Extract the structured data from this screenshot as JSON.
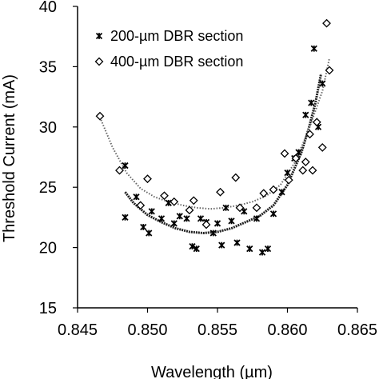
{
  "chart_data": {
    "type": "scatter",
    "xlabel": "Wavelength (µm)",
    "ylabel": "Threshold Current (mA)",
    "xlim": [
      0.845,
      0.865
    ],
    "ylim": [
      15,
      40
    ],
    "x_ticks": [
      "0.845",
      "0.850",
      "0.855",
      "0.860",
      "0.865"
    ],
    "y_ticks": [
      "15",
      "20",
      "25",
      "30",
      "35",
      "40"
    ],
    "grid": false,
    "legend_position": "top-left",
    "series": [
      {
        "name": "200-µm DBR section",
        "marker": "asterisk",
        "points": [
          [
            0.8484,
            26.8
          ],
          [
            0.8484,
            22.5
          ],
          [
            0.8492,
            24.2
          ],
          [
            0.8497,
            21.7
          ],
          [
            0.8501,
            21.2
          ],
          [
            0.8503,
            23.0
          ],
          [
            0.851,
            22.4
          ],
          [
            0.8515,
            23.7
          ],
          [
            0.8519,
            22.0
          ],
          [
            0.8523,
            22.6
          ],
          [
            0.8528,
            22.4
          ],
          [
            0.8532,
            20.1
          ],
          [
            0.8535,
            19.9
          ],
          [
            0.8538,
            22.4
          ],
          [
            0.8542,
            22.1
          ],
          [
            0.8547,
            21.2
          ],
          [
            0.855,
            22.0
          ],
          [
            0.8553,
            20.2
          ],
          [
            0.8556,
            23.3
          ],
          [
            0.856,
            22.2
          ],
          [
            0.8564,
            20.4
          ],
          [
            0.8569,
            23.0
          ],
          [
            0.8573,
            19.9
          ],
          [
            0.8578,
            22.4
          ],
          [
            0.8582,
            19.6
          ],
          [
            0.8586,
            19.9
          ],
          [
            0.859,
            22.8
          ],
          [
            0.8596,
            24.6
          ],
          [
            0.86,
            26.2
          ],
          [
            0.8605,
            27.4
          ],
          [
            0.8608,
            27.9
          ],
          [
            0.8613,
            31.0
          ],
          [
            0.8617,
            32.0
          ],
          [
            0.8619,
            36.5
          ],
          [
            0.8622,
            30.0
          ],
          [
            0.8625,
            33.6
          ]
        ],
        "fit": [
          [
            0.8484,
            24.6
          ],
          [
            0.849,
            23.7
          ],
          [
            0.85,
            22.7
          ],
          [
            0.851,
            22.1
          ],
          [
            0.852,
            21.6
          ],
          [
            0.853,
            21.3
          ],
          [
            0.854,
            21.2
          ],
          [
            0.855,
            21.3
          ],
          [
            0.856,
            21.6
          ],
          [
            0.857,
            22.1
          ],
          [
            0.858,
            22.6
          ],
          [
            0.859,
            23.5
          ],
          [
            0.86,
            25.2
          ],
          [
            0.861,
            27.9
          ],
          [
            0.8615,
            29.8
          ],
          [
            0.862,
            32.0
          ],
          [
            0.8624,
            34.4
          ]
        ]
      },
      {
        "name": "400-µm DBR section",
        "marker": "diamond",
        "points": [
          [
            0.8466,
            30.9
          ],
          [
            0.848,
            26.4
          ],
          [
            0.8495,
            23.5
          ],
          [
            0.85,
            25.7
          ],
          [
            0.8512,
            24.3
          ],
          [
            0.8519,
            23.8
          ],
          [
            0.853,
            23.1
          ],
          [
            0.8533,
            23.9
          ],
          [
            0.8542,
            21.9
          ],
          [
            0.8552,
            24.6
          ],
          [
            0.8563,
            25.8
          ],
          [
            0.8566,
            23.3
          ],
          [
            0.8578,
            23.3
          ],
          [
            0.8583,
            24.5
          ],
          [
            0.859,
            24.8
          ],
          [
            0.8598,
            27.8
          ],
          [
            0.8601,
            25.6
          ],
          [
            0.8606,
            27.4
          ],
          [
            0.8611,
            26.4
          ],
          [
            0.8613,
            27.1
          ],
          [
            0.8616,
            29.4
          ],
          [
            0.8618,
            26.4
          ],
          [
            0.8621,
            30.4
          ],
          [
            0.8625,
            28.3
          ],
          [
            0.8628,
            38.6
          ],
          [
            0.863,
            34.7
          ]
        ],
        "fit": [
          [
            0.8466,
            30.8
          ],
          [
            0.8475,
            28.3
          ],
          [
            0.8485,
            26.2
          ],
          [
            0.8495,
            24.9
          ],
          [
            0.8505,
            24.2
          ],
          [
            0.8515,
            23.8
          ],
          [
            0.8525,
            23.5
          ],
          [
            0.8535,
            23.3
          ],
          [
            0.8545,
            23.2
          ],
          [
            0.8555,
            23.3
          ],
          [
            0.8565,
            23.5
          ],
          [
            0.8575,
            23.8
          ],
          [
            0.8585,
            24.3
          ],
          [
            0.8595,
            25.2
          ],
          [
            0.8605,
            27.0
          ],
          [
            0.8615,
            29.7
          ],
          [
            0.8625,
            33.0
          ],
          [
            0.863,
            35.7
          ]
        ]
      }
    ]
  }
}
